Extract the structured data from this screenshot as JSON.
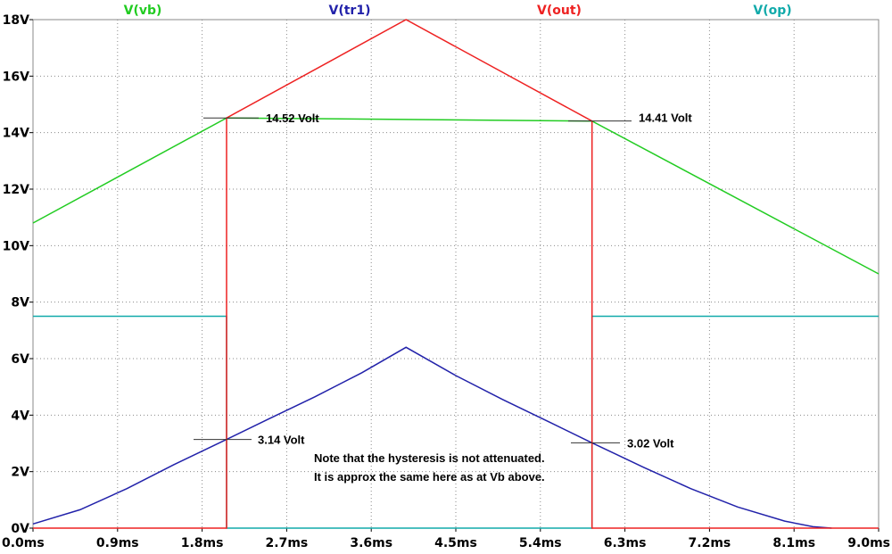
{
  "chart_data": {
    "type": "line",
    "xlim": [
      0,
      9
    ],
    "ylim": [
      0,
      18
    ],
    "x_ticks": [
      "0.0ms",
      "0.9ms",
      "1.8ms",
      "2.7ms",
      "3.6ms",
      "4.5ms",
      "5.4ms",
      "6.3ms",
      "7.2ms",
      "8.1ms",
      "9.0ms"
    ],
    "y_ticks": [
      "0V",
      "2V",
      "4V",
      "6V",
      "8V",
      "10V",
      "12V",
      "14V",
      "16V",
      "18V"
    ],
    "grid": true,
    "legend_placement": "top",
    "series": [
      {
        "name": "V(vb)",
        "color": "#22cc22",
        "x": [
          0,
          2.06,
          5.95,
          9.0
        ],
        "y": [
          10.8,
          14.52,
          14.41,
          9.0
        ]
      },
      {
        "name": "V(tr1)",
        "color": "#2222aa",
        "x": [
          0,
          0.5,
          1.0,
          1.5,
          2.06,
          2.5,
          3.0,
          3.5,
          3.97,
          4.5,
          5.0,
          5.5,
          5.95,
          6.5,
          7.0,
          7.5,
          8.0,
          8.3,
          8.5
        ],
        "y": [
          0.15,
          0.65,
          1.4,
          2.25,
          3.14,
          3.85,
          4.65,
          5.5,
          6.4,
          5.4,
          4.55,
          3.75,
          3.02,
          2.15,
          1.4,
          0.75,
          0.25,
          0.05,
          0.0
        ]
      },
      {
        "name": "V(out)",
        "color": "#ee2222",
        "x": [
          0,
          2.06,
          2.06,
          3.97,
          5.95,
          5.95,
          9.0
        ],
        "y": [
          0,
          0,
          14.52,
          18.0,
          14.41,
          0,
          0
        ]
      },
      {
        "name": "V(op)",
        "color": "#11aaaa",
        "x": [
          0,
          2.06,
          2.06,
          5.95,
          5.95,
          9.0
        ],
        "y": [
          7.5,
          7.5,
          0,
          0,
          7.5,
          7.5
        ]
      }
    ],
    "annotations": [
      {
        "text": "14.52 Volt",
        "x": 2.06,
        "y": 14.52
      },
      {
        "text": "14.41 Volt",
        "x": 5.95,
        "y": 14.41
      },
      {
        "text": "3.14 Volt",
        "x": 2.06,
        "y": 3.14
      },
      {
        "text": "3.02 Volt",
        "x": 5.95,
        "y": 3.02
      }
    ],
    "note": [
      "Note that the hysteresis is not attenuated.",
      "It is approx the same here as at Vb above."
    ]
  }
}
